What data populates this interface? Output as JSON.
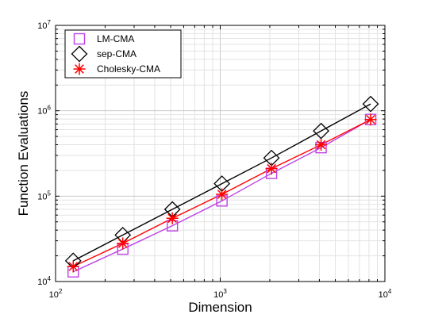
{
  "chart_data": {
    "type": "line",
    "xlabel": "Dimension",
    "ylabel": "Function Evaluations",
    "x_scale": "log",
    "y_scale": "log",
    "xlim": [
      100,
      10000
    ],
    "ylim": [
      10000,
      10000000
    ],
    "x_ticks": [
      {
        "value": 100,
        "base": "10",
        "exp": "2"
      },
      {
        "value": 1000,
        "base": "10",
        "exp": "3"
      },
      {
        "value": 10000,
        "base": "10",
        "exp": "4"
      }
    ],
    "y_ticks": [
      {
        "value": 10000,
        "base": "10",
        "exp": "4"
      },
      {
        "value": 100000,
        "base": "10",
        "exp": "5"
      },
      {
        "value": 1000000,
        "base": "10",
        "exp": "6"
      },
      {
        "value": 10000000,
        "base": "10",
        "exp": "7"
      }
    ],
    "grid": true,
    "legend_position": "top-left",
    "series": [
      {
        "name": "LM-CMA",
        "color": "#bf40e6",
        "marker": "square",
        "line": "solid",
        "x": [
          128,
          256,
          512,
          1024,
          2048,
          4096,
          8192
        ],
        "y": [
          13000,
          24000,
          45000,
          88000,
          185000,
          370000,
          790000
        ]
      },
      {
        "name": "sep-CMA",
        "color": "#000000",
        "marker": "diamond",
        "line": "solid",
        "x": [
          128,
          256,
          512,
          1024,
          2048,
          4096,
          8192
        ],
        "y": [
          17500,
          35000,
          70000,
          140000,
          280000,
          580000,
          1200000
        ]
      },
      {
        "name": "Cholesky-CMA",
        "color": "#ff0000",
        "marker": "asterisk",
        "line": "solid",
        "x": [
          128,
          256,
          512,
          1024,
          2048,
          4096,
          8192
        ],
        "y": [
          15000,
          28000,
          55000,
          105000,
          210000,
          400000,
          790000
        ]
      }
    ]
  }
}
